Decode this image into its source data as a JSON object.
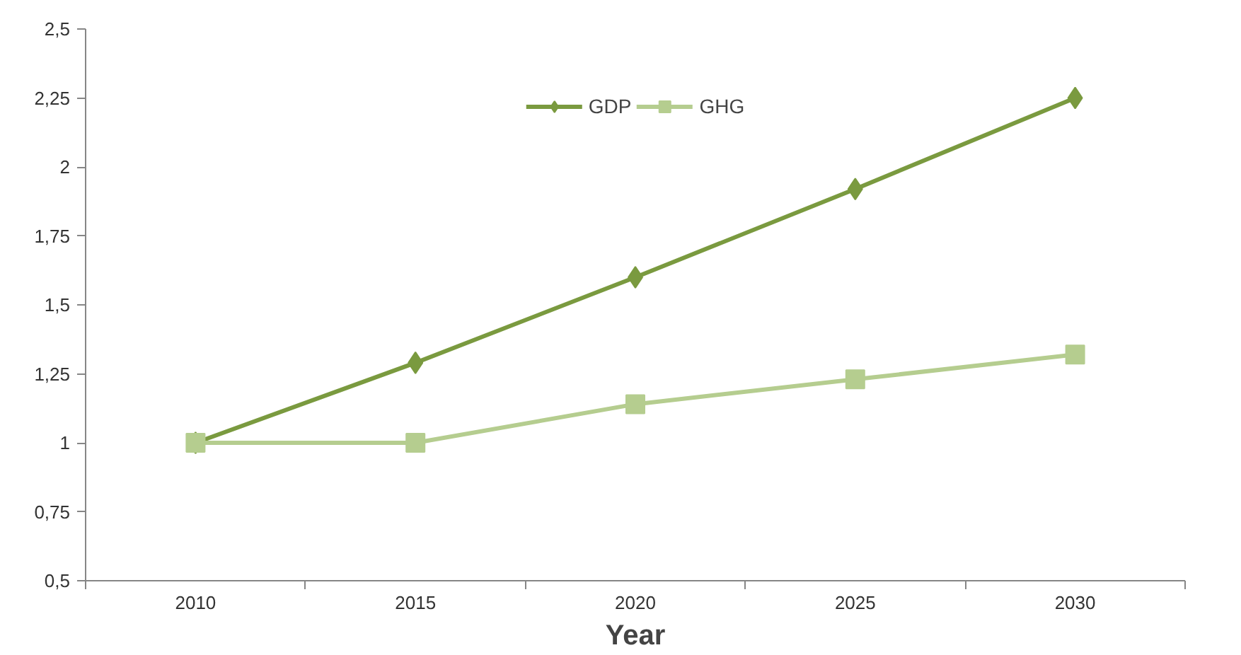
{
  "chart_data": {
    "type": "line",
    "xlabel": "Year",
    "categories": [
      "2010",
      "2015",
      "2020",
      "2025",
      "2030"
    ],
    "series": [
      {
        "name": "GDP",
        "color": "#7a9a3f",
        "marker": "diamond",
        "values": [
          1,
          1.29,
          1.6,
          1.92,
          2.25
        ]
      },
      {
        "name": "GHG",
        "color": "#b5cd8f",
        "marker": "square",
        "values": [
          1,
          1,
          1.14,
          1.23,
          1.32
        ]
      }
    ],
    "ylim": [
      0.5,
      2.5
    ],
    "yticks": [
      {
        "value": 0.5,
        "label": "0,5"
      },
      {
        "value": 0.75,
        "label": "0,75"
      },
      1,
      {
        "value": 1.25,
        "label": "1,25"
      },
      {
        "value": 1.5,
        "label": "1,5"
      },
      {
        "value": 1.75,
        "label": "1,75"
      },
      2,
      {
        "value": 2.25,
        "label": "2,25"
      },
      {
        "value": 2.5,
        "label": "2,5"
      }
    ],
    "grid": false,
    "legend": "top",
    "line_style": "solid"
  }
}
